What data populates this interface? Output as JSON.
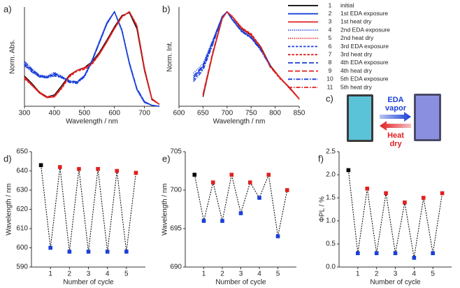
{
  "chart_data": [
    {
      "type": "line",
      "panel_label": "a)",
      "x_label": "Wavelength / nm",
      "y_label": "Norm. Abs.",
      "x": [
        300,
        325,
        350,
        375,
        400,
        425,
        450,
        475,
        500,
        525,
        550,
        575,
        600,
        625,
        650,
        675,
        700,
        725,
        750
      ],
      "xlim": [
        300,
        750
      ],
      "xticks": [
        300,
        400,
        500,
        600,
        700
      ],
      "ylim": [
        0,
        1.05
      ],
      "series": [
        {
          "number": "1",
          "name": "initial",
          "color": "#000000",
          "dash": "solid",
          "values": [
            0.32,
            0.24,
            0.15,
            0.1,
            0.12,
            0.22,
            0.33,
            0.38,
            0.41,
            0.47,
            0.57,
            0.7,
            0.84,
            0.96,
            0.99,
            0.82,
            0.38,
            0.07,
            0.02
          ]
        },
        {
          "number": "2",
          "name": "1st EDA exposure",
          "color": "#1a3fd9",
          "dash": "solid",
          "values": [
            0.45,
            0.38,
            0.32,
            0.31,
            0.34,
            0.31,
            0.26,
            0.25,
            0.32,
            0.48,
            0.68,
            0.88,
            1.0,
            0.8,
            0.45,
            0.18,
            0.04,
            0.01,
            0.0
          ]
        },
        {
          "number": "3",
          "name": "1st heat dry",
          "color": "#e02020",
          "dash": "solid",
          "values": [
            0.3,
            0.22,
            0.14,
            0.09,
            0.1,
            0.2,
            0.32,
            0.38,
            0.4,
            0.45,
            0.55,
            0.68,
            0.82,
            0.95,
            1.0,
            0.85,
            0.4,
            0.08,
            0.02
          ]
        },
        {
          "number": "4",
          "name": "2nd EDA exposure",
          "color": "#1a3fd9",
          "dash": "dotted",
          "values": [
            0.48,
            0.4,
            0.33,
            0.32,
            0.36,
            0.32,
            0.27,
            0.26,
            0.33,
            0.49,
            0.69,
            0.89,
            1.0,
            0.79,
            0.44,
            0.17,
            0.04,
            0.01,
            0.0
          ]
        },
        {
          "number": "5",
          "name": "2nd heat dry",
          "color": "#e02020",
          "dash": "dotted",
          "values": [
            0.31,
            0.23,
            0.15,
            0.1,
            0.11,
            0.21,
            0.33,
            0.38,
            0.4,
            0.45,
            0.56,
            0.69,
            0.83,
            0.95,
            1.0,
            0.84,
            0.4,
            0.08,
            0.02
          ]
        },
        {
          "number": "6",
          "name": "3rd EDA exposure",
          "color": "#1a3fd9",
          "dash": "dashed",
          "values": [
            0.44,
            0.37,
            0.31,
            0.3,
            0.33,
            0.3,
            0.26,
            0.25,
            0.31,
            0.47,
            0.67,
            0.87,
            1.0,
            0.81,
            0.46,
            0.18,
            0.04,
            0.01,
            0.0
          ]
        },
        {
          "number": "7",
          "name": "3rd heat dry",
          "color": "#e02020",
          "dash": "dashed",
          "values": [
            0.29,
            0.22,
            0.14,
            0.09,
            0.1,
            0.19,
            0.31,
            0.37,
            0.39,
            0.44,
            0.55,
            0.68,
            0.82,
            0.94,
            1.0,
            0.86,
            0.41,
            0.08,
            0.02
          ]
        },
        {
          "number": "8",
          "name": "4th EDA exposure",
          "color": "#1a3fd9",
          "dash": "longdash",
          "values": [
            0.47,
            0.39,
            0.33,
            0.31,
            0.35,
            0.31,
            0.27,
            0.26,
            0.32,
            0.48,
            0.68,
            0.87,
            1.0,
            0.8,
            0.46,
            0.19,
            0.05,
            0.01,
            0.0
          ]
        },
        {
          "number": "9",
          "name": "4th heat dry",
          "color": "#e02020",
          "dash": "longdash",
          "values": [
            0.3,
            0.23,
            0.15,
            0.1,
            0.11,
            0.2,
            0.32,
            0.38,
            0.41,
            0.46,
            0.56,
            0.69,
            0.83,
            0.95,
            1.0,
            0.85,
            0.39,
            0.07,
            0.02
          ]
        },
        {
          "number": "10",
          "name": "5th EDA exposure",
          "color": "#1a3fd9",
          "dash": "dashdot",
          "values": [
            0.43,
            0.36,
            0.31,
            0.3,
            0.32,
            0.3,
            0.25,
            0.24,
            0.31,
            0.47,
            0.67,
            0.87,
            1.0,
            0.81,
            0.46,
            0.19,
            0.05,
            0.01,
            0.0
          ]
        },
        {
          "number": "11",
          "name": "5th heat dry",
          "color": "#e02020",
          "dash": "dashdot",
          "values": [
            0.31,
            0.23,
            0.14,
            0.09,
            0.1,
            0.2,
            0.32,
            0.38,
            0.4,
            0.45,
            0.55,
            0.68,
            0.82,
            0.95,
            1.0,
            0.85,
            0.4,
            0.08,
            0.02
          ]
        }
      ]
    },
    {
      "type": "line",
      "panel_label": "b)",
      "x_label": "Wavelength / nm",
      "y_label": "Norm. Int.",
      "x": [
        630,
        650,
        670,
        690,
        700,
        710,
        730,
        750,
        770,
        790,
        810,
        830,
        850
      ],
      "xlim": [
        600,
        850
      ],
      "xticks": [
        600,
        650,
        700,
        750,
        800,
        850
      ],
      "ylim": [
        0,
        1.05
      ],
      "series": [
        {
          "color": "#000000",
          "dash": "solid",
          "values": [
            null,
            0.1,
            0.55,
            0.93,
            1.0,
            0.95,
            0.82,
            0.75,
            0.63,
            0.43,
            0.3,
            0.19,
            0.08
          ]
        },
        {
          "color": "#1a3fd9",
          "dash": "solid",
          "values": [
            0.3,
            0.42,
            0.68,
            0.95,
            1.0,
            0.92,
            0.8,
            0.73,
            0.6,
            0.43,
            null,
            null,
            null
          ]
        },
        {
          "color": "#e02020",
          "dash": "solid",
          "values": [
            null,
            0.12,
            0.56,
            0.93,
            1.0,
            0.95,
            0.83,
            0.76,
            0.62,
            0.42,
            0.3,
            0.2,
            0.08
          ]
        },
        {
          "color": "#1a3fd9",
          "dash": "dotted",
          "values": [
            0.35,
            0.45,
            0.7,
            0.95,
            1.0,
            0.93,
            0.81,
            0.74,
            0.61,
            0.44,
            null,
            null,
            null
          ]
        },
        {
          "color": "#e02020",
          "dash": "dotted",
          "values": [
            null,
            0.11,
            0.54,
            0.92,
            1.0,
            0.96,
            0.84,
            0.75,
            0.62,
            0.43,
            0.31,
            0.19,
            0.07
          ]
        },
        {
          "color": "#1a3fd9",
          "dash": "dashed",
          "values": [
            0.28,
            0.4,
            0.66,
            0.94,
            1.0,
            0.92,
            0.79,
            0.72,
            0.6,
            0.42,
            null,
            null,
            null
          ]
        },
        {
          "color": "#e02020",
          "dash": "dashed",
          "values": [
            null,
            0.12,
            0.55,
            0.93,
            1.0,
            0.95,
            0.83,
            0.77,
            0.63,
            0.42,
            0.29,
            0.2,
            0.08
          ]
        },
        {
          "color": "#1a3fd9",
          "dash": "longdash",
          "values": [
            0.32,
            0.43,
            0.69,
            0.95,
            1.0,
            0.93,
            0.8,
            0.73,
            0.61,
            0.43,
            null,
            null,
            null
          ]
        },
        {
          "color": "#e02020",
          "dash": "longdash",
          "values": [
            null,
            0.13,
            0.57,
            0.94,
            1.0,
            0.95,
            0.82,
            0.75,
            0.62,
            0.41,
            0.3,
            0.19,
            0.08
          ]
        },
        {
          "color": "#1a3fd9",
          "dash": "dashdot",
          "values": [
            0.26,
            0.38,
            0.65,
            0.94,
            1.0,
            0.92,
            0.79,
            0.72,
            0.59,
            0.42,
            null,
            null,
            null
          ]
        },
        {
          "color": "#e02020",
          "dash": "dashdot",
          "values": [
            null,
            0.12,
            0.55,
            0.93,
            1.0,
            0.95,
            0.83,
            0.76,
            0.62,
            0.42,
            0.3,
            0.2,
            0.08
          ]
        }
      ]
    },
    {
      "type": "image",
      "panel_label": "c)",
      "top_arrow_label": [
        "EDA",
        "vapor"
      ],
      "bottom_arrow_label": [
        "Heat",
        "dry"
      ]
    },
    {
      "type": "scatter",
      "panel_label": "d)",
      "x_label": "Number of cycle",
      "y_label": "Wavelength / nm",
      "x": [
        0.5,
        1,
        1.5,
        2,
        2.5,
        3,
        3.5,
        4,
        4.5,
        5,
        5.5
      ],
      "values": [
        643,
        600,
        642,
        598,
        641,
        598,
        641,
        598,
        640,
        598,
        639
      ],
      "point_colors": [
        "#000000",
        "#1a3fd9",
        "#e02020",
        "#1a3fd9",
        "#e02020",
        "#1a3fd9",
        "#e02020",
        "#1a3fd9",
        "#e02020",
        "#1a3fd9",
        "#e02020"
      ],
      "line_color": "#000000",
      "xlim": [
        0,
        6
      ],
      "xticks": [
        1,
        2,
        3,
        4,
        5
      ],
      "ylim": [
        590,
        650
      ],
      "yticks": [
        590,
        600,
        610,
        620,
        630,
        640,
        650
      ]
    },
    {
      "type": "scatter",
      "panel_label": "e)",
      "x_label": "Number of cycle",
      "y_label": "Wavelength / nm",
      "x": [
        0.5,
        1,
        1.5,
        2,
        2.5,
        3,
        3.5,
        4,
        4.5,
        5,
        5.5
      ],
      "values": [
        702,
        696,
        701,
        696,
        702,
        697,
        701,
        699,
        702,
        694,
        700
      ],
      "point_colors": [
        "#000000",
        "#1a3fd9",
        "#e02020",
        "#1a3fd9",
        "#e02020",
        "#1a3fd9",
        "#e02020",
        "#1a3fd9",
        "#e02020",
        "#1a3fd9",
        "#e02020"
      ],
      "line_color": "#000000",
      "xlim": [
        0,
        6
      ],
      "xticks": [
        1,
        2,
        3,
        4,
        5
      ],
      "ylim": [
        690,
        705
      ],
      "yticks": [
        690,
        695,
        700,
        705
      ]
    },
    {
      "type": "scatter",
      "panel_label": "f)",
      "x_label": "Number of cycle",
      "y_label": "ΦPL / %",
      "x": [
        0.5,
        1,
        1.5,
        2,
        2.5,
        3,
        3.5,
        4,
        4.5,
        5,
        5.5
      ],
      "values": [
        2.1,
        0.3,
        1.7,
        0.3,
        1.6,
        0.3,
        1.4,
        0.2,
        1.5,
        0.3,
        1.6
      ],
      "point_colors": [
        "#000000",
        "#1a3fd9",
        "#e02020",
        "#1a3fd9",
        "#e02020",
        "#1a3fd9",
        "#e02020",
        "#1a3fd9",
        "#e02020",
        "#1a3fd9",
        "#e02020"
      ],
      "line_color": "#000000",
      "xlim": [
        0,
        6
      ],
      "xticks": [
        1,
        2,
        3,
        4,
        5
      ],
      "ylim": [
        0,
        2.5
      ],
      "yticks": [
        {
          "value": 0,
          "label": "0.0"
        },
        0.5,
        {
          "value": 1,
          "label": "1.0"
        },
        1.5,
        {
          "value": 2,
          "label": "2.0"
        },
        2.5
      ]
    }
  ]
}
